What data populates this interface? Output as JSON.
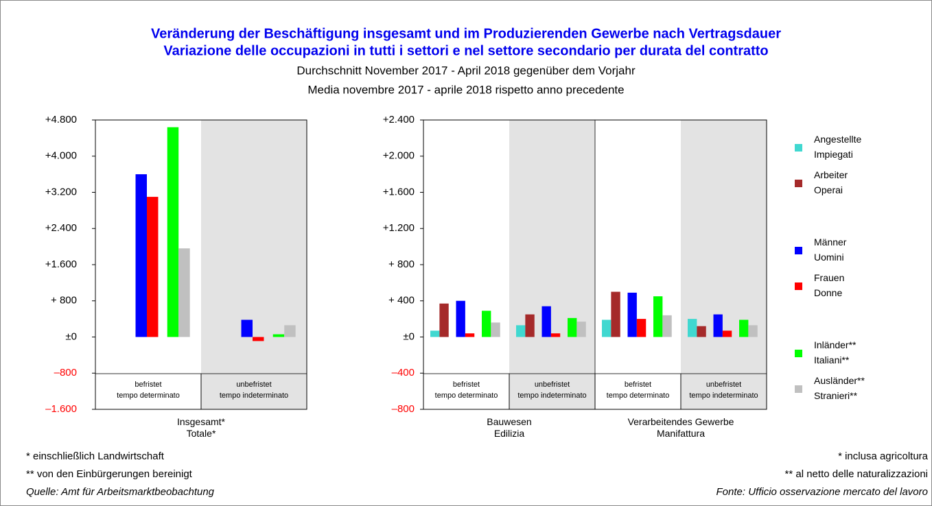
{
  "title": [
    "Veränderung der Beschäftigung insgesamt und im Produzierenden Gewerbe nach Vertragsdauer",
    "Variazione delle occupazioni in tutti i settori e nel settore secondario per durata del contratto"
  ],
  "subtitle": [
    "Durchschnitt November 2017 - April 2018 gegenüber dem Vorjahr",
    "Media novembre 2017 - aprile 2018 rispetto anno precedente"
  ],
  "footnotes_left": [
    "* einschließlich Landwirtschaft",
    "** von den Einbürgerungen bereinigt",
    "Quelle: Amt für Arbeitsmarktbeobachtung"
  ],
  "footnotes_right": [
    "* inclusa agricoltura",
    "** al netto delle naturalizzazioni",
    "Fonte: Ufficio osservazione mercato del lavoro"
  ],
  "chart_data": [
    {
      "type": "bar",
      "categories": [
        "befristet\ntempo determinato",
        "unbefristet\ntempo indeterminato"
      ],
      "groups": [
        "Insgesamt*\nTotale*"
      ],
      "series": [
        {
          "name": "Männer\nUomini",
          "color": "#0000ff",
          "values": [
            3600,
            380
          ]
        },
        {
          "name": "Frauen\nDonne",
          "color": "#ff0000",
          "values": [
            3100,
            -90
          ]
        },
        {
          "name": "Inländer**\nItaliani**",
          "color": "#00ff00",
          "values": [
            4640,
            60
          ]
        },
        {
          "name": "Ausländer**\nStranieri**",
          "color": "#c0c0c0",
          "values": [
            1960,
            260
          ]
        }
      ],
      "ylim": [
        -1600,
        4800
      ],
      "yticks": [
        {
          "value": 4800,
          "label": "+4.800"
        },
        {
          "value": 4000,
          "label": "+4.000"
        },
        {
          "value": 3200,
          "label": "+3.200"
        },
        {
          "value": 2400,
          "label": "+2.400"
        },
        {
          "value": 1600,
          "label": "+1.600"
        },
        {
          "value": 800,
          "label": "+ 800"
        },
        {
          "value": 0,
          "label": "±0"
        },
        {
          "value": -800,
          "label": "–800"
        },
        {
          "value": -1600,
          "label": "–1.600"
        }
      ],
      "negative_tick_color": "#ff0000"
    },
    {
      "type": "bar",
      "categories": [
        "befristet\ntempo determinato",
        "unbefristet\ntempo indeterminato",
        "befristet\ntempo determinato",
        "unbefristet\ntempo indeterminato"
      ],
      "groups": [
        "Bauwesen\nEdilizia",
        "Verarbeitendes Gewerbe\nManifattura"
      ],
      "series": [
        {
          "name": "Angestellte\nImpiegati",
          "color": "#40d8d0",
          "values": [
            70,
            130,
            190,
            200
          ]
        },
        {
          "name": "Arbeiter\nOperai",
          "color": "#a52a2a",
          "values": [
            370,
            250,
            500,
            120
          ]
        },
        {
          "name": "Männer\nUomini",
          "color": "#0000ff",
          "values": [
            400,
            340,
            490,
            250
          ]
        },
        {
          "name": "Frauen\nDonne",
          "color": "#ff0000",
          "values": [
            40,
            40,
            200,
            70
          ]
        },
        {
          "name": "Inländer**\nItaliani**",
          "color": "#00ff00",
          "values": [
            290,
            210,
            450,
            190
          ]
        },
        {
          "name": "Ausländer**\nStranieri**",
          "color": "#c0c0c0",
          "values": [
            160,
            170,
            240,
            130
          ]
        }
      ],
      "ylim": [
        -800,
        2400
      ],
      "yticks": [
        {
          "value": 2400,
          "label": "+2.400"
        },
        {
          "value": 2000,
          "label": "+2.000"
        },
        {
          "value": 1600,
          "label": "+1.600"
        },
        {
          "value": 1200,
          "label": "+1.200"
        },
        {
          "value": 800,
          "label": "+ 800"
        },
        {
          "value": 400,
          "label": "+ 400"
        },
        {
          "value": 0,
          "label": "±0"
        },
        {
          "value": -400,
          "label": "–400"
        },
        {
          "value": -800,
          "label": "–800"
        }
      ],
      "negative_tick_color": "#ff0000",
      "legend": "right"
    }
  ]
}
